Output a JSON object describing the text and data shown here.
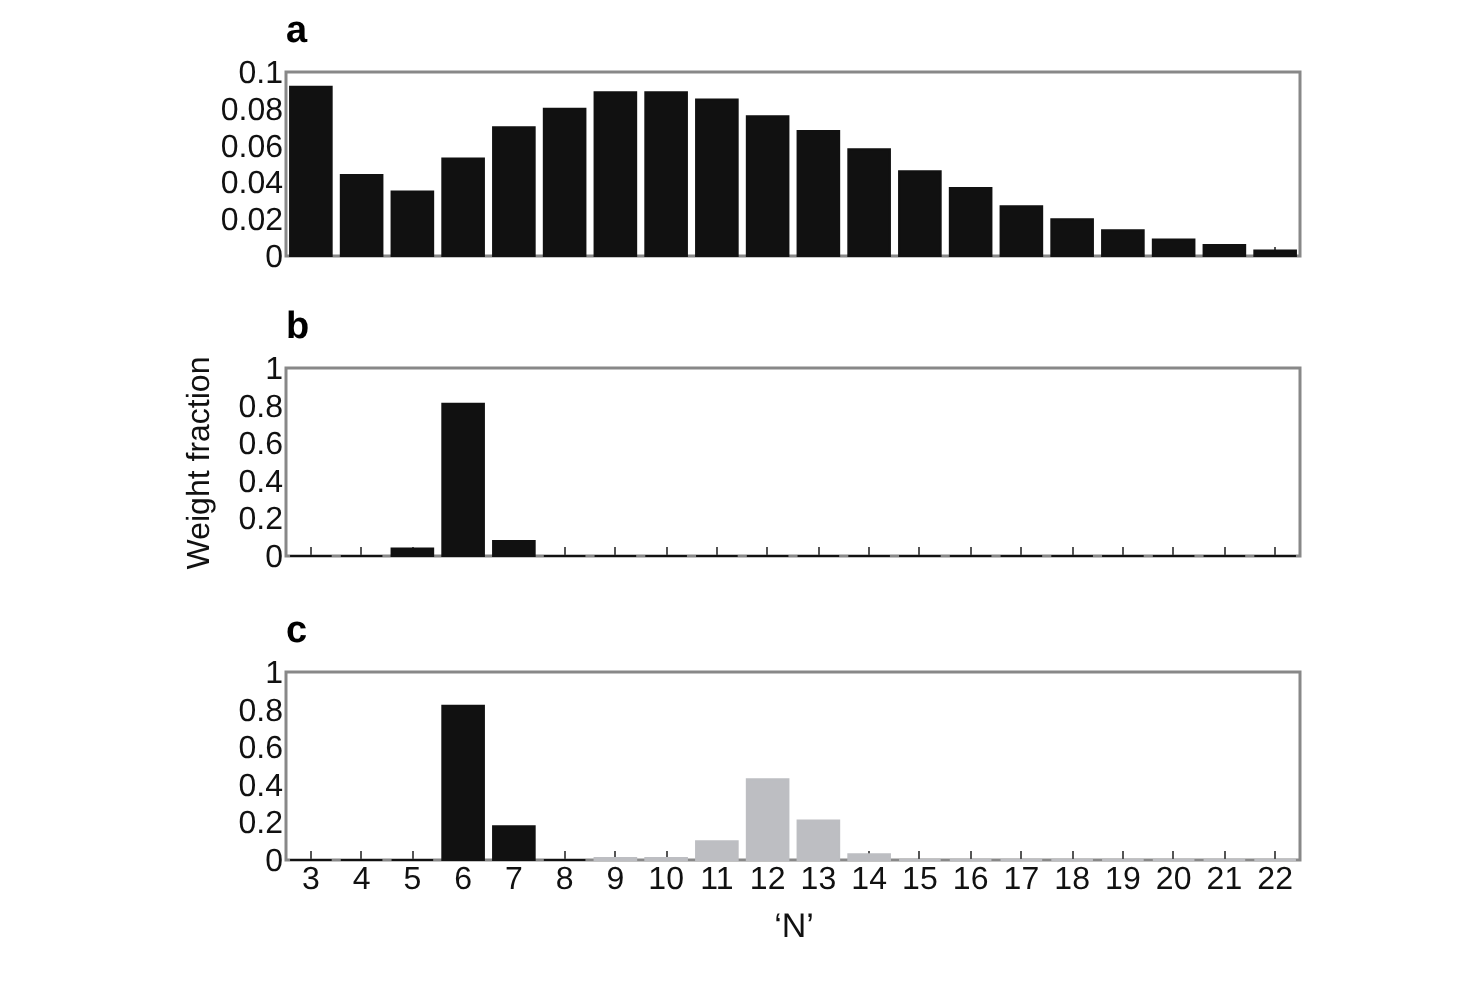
{
  "chart_data": [
    {
      "type": "bar",
      "title": "a",
      "categories": [
        "3",
        "4",
        "5",
        "6",
        "7",
        "8",
        "9",
        "10",
        "11",
        "12",
        "13",
        "14",
        "15",
        "16",
        "17",
        "18",
        "19",
        "20",
        "21",
        "22"
      ],
      "values": [
        0.092,
        0.044,
        0.035,
        0.053,
        0.07,
        0.08,
        0.089,
        0.089,
        0.085,
        0.076,
        0.068,
        0.058,
        0.046,
        0.037,
        0.027,
        0.02,
        0.014,
        0.009,
        0.006,
        0.003
      ],
      "color": "#111111",
      "ylim": [
        0,
        0.1
      ],
      "yticks": [
        0,
        0.02,
        0.04,
        0.06,
        0.08,
        0.1
      ],
      "tick_labels": "y"
    },
    {
      "type": "bar",
      "title": "b",
      "ylabel": "Weight fraction",
      "categories": [
        "3",
        "4",
        "5",
        "6",
        "7",
        "8",
        "9",
        "10",
        "11",
        "12",
        "13",
        "14",
        "15",
        "16",
        "17",
        "18",
        "19",
        "20",
        "21",
        "22"
      ],
      "values": [
        0,
        0,
        0.04,
        0.81,
        0.08,
        0,
        0,
        0,
        0,
        0,
        0,
        0,
        0,
        0,
        0,
        0,
        0,
        0,
        0,
        0
      ],
      "color": "#111111",
      "ylim": [
        0,
        1
      ],
      "yticks": [
        0,
        0.2,
        0.4,
        0.6,
        0.8,
        1
      ],
      "tick_labels": "y"
    },
    {
      "type": "bar",
      "title": "c",
      "xlabel": "‘N’",
      "categories": [
        "3",
        "4",
        "5",
        "6",
        "7",
        "8",
        "9",
        "10",
        "11",
        "12",
        "13",
        "14",
        "15",
        "16",
        "17",
        "18",
        "19",
        "20",
        "21",
        "22"
      ],
      "values": [
        0,
        0,
        0,
        0.82,
        0.18,
        0,
        0.01,
        0.01,
        0.1,
        0.43,
        0.21,
        0.03,
        0,
        0,
        0,
        0,
        0,
        0,
        0,
        0
      ],
      "colors": [
        "#111111",
        "#111111",
        "#111111",
        "#111111",
        "#111111",
        "#111111",
        "#bdbec2",
        "#bdbec2",
        "#bdbec2",
        "#bdbec2",
        "#bdbec2",
        "#bdbec2",
        "#bdbec2",
        "#bdbec2",
        "#bdbec2",
        "#bdbec2",
        "#bdbec2",
        "#bdbec2",
        "#bdbec2",
        "#bdbec2"
      ],
      "ylim": [
        0,
        1
      ],
      "yticks": [
        0,
        0.2,
        0.4,
        0.6,
        0.8,
        1
      ]
    }
  ]
}
